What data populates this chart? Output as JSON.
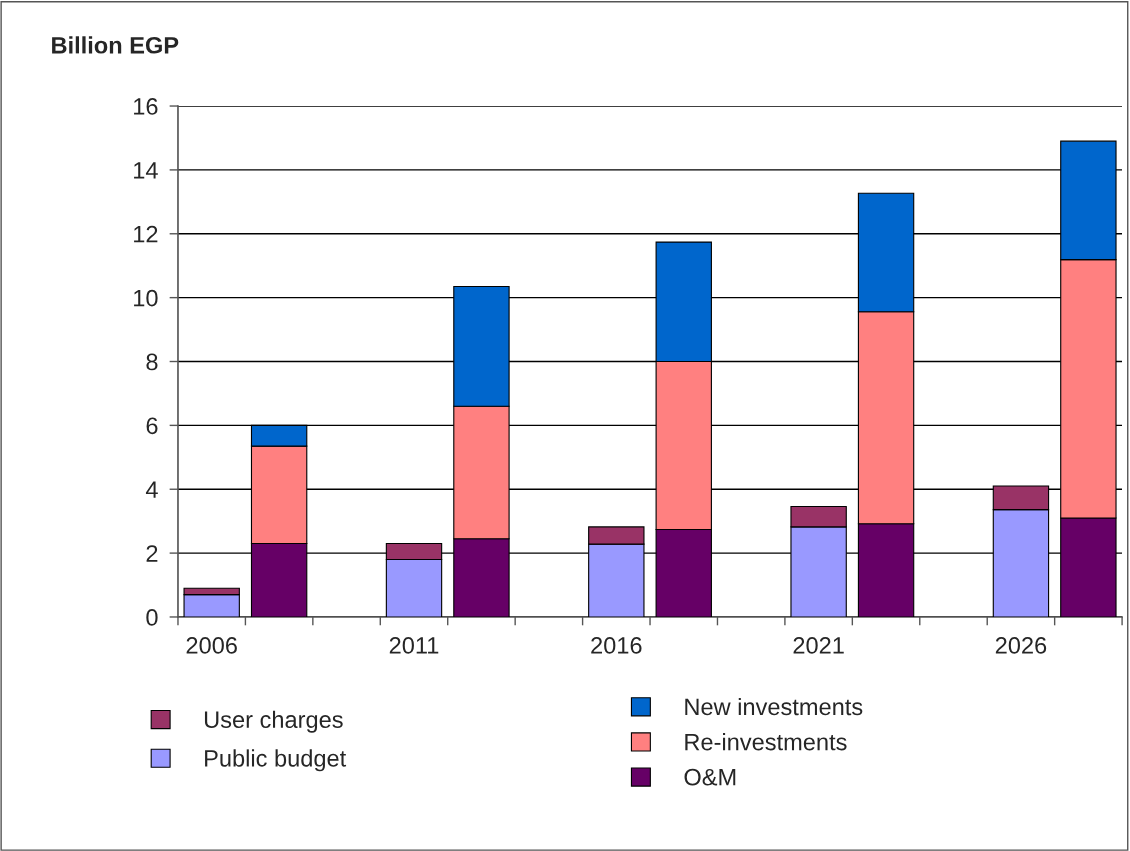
{
  "chart_data": {
    "type": "bar",
    "stacked": true,
    "ylabel": "Billion EGP",
    "categories": [
      "2006",
      null,
      null,
      "2011",
      null,
      null,
      "2016",
      null,
      null,
      "2021",
      null,
      null,
      "2026",
      null
    ],
    "series": [
      {
        "name": "Public budget",
        "color": "#9999ff",
        "values": [
          0.7,
          null,
          null,
          1.8,
          null,
          null,
          2.28,
          null,
          null,
          2.82,
          null,
          null,
          3.36,
          null
        ]
      },
      {
        "name": "User charges",
        "color": "#993366",
        "values": [
          0.2,
          null,
          null,
          0.5,
          null,
          null,
          0.54,
          null,
          null,
          0.64,
          null,
          null,
          0.74,
          null
        ]
      },
      {
        "name": "O&M",
        "color": "#660066",
        "values": [
          null,
          2.3,
          null,
          null,
          2.45,
          null,
          null,
          2.74,
          null,
          null,
          2.92,
          null,
          null,
          3.1
        ]
      },
      {
        "name": "Re-investments",
        "color": "#ff8080",
        "values": [
          null,
          3.05,
          null,
          null,
          4.15,
          null,
          null,
          5.26,
          null,
          null,
          6.64,
          null,
          null,
          8.09
        ]
      },
      {
        "name": "New investments",
        "color": "#0066cc",
        "values": [
          null,
          0.65,
          null,
          null,
          3.75,
          null,
          null,
          3.74,
          null,
          null,
          3.71,
          null,
          null,
          3.71
        ]
      }
    ],
    "ylim": [
      0,
      16
    ],
    "yticks": [
      0,
      2,
      4,
      6,
      8,
      10,
      12,
      14,
      16
    ],
    "grid": "y",
    "legend": "bottom"
  }
}
